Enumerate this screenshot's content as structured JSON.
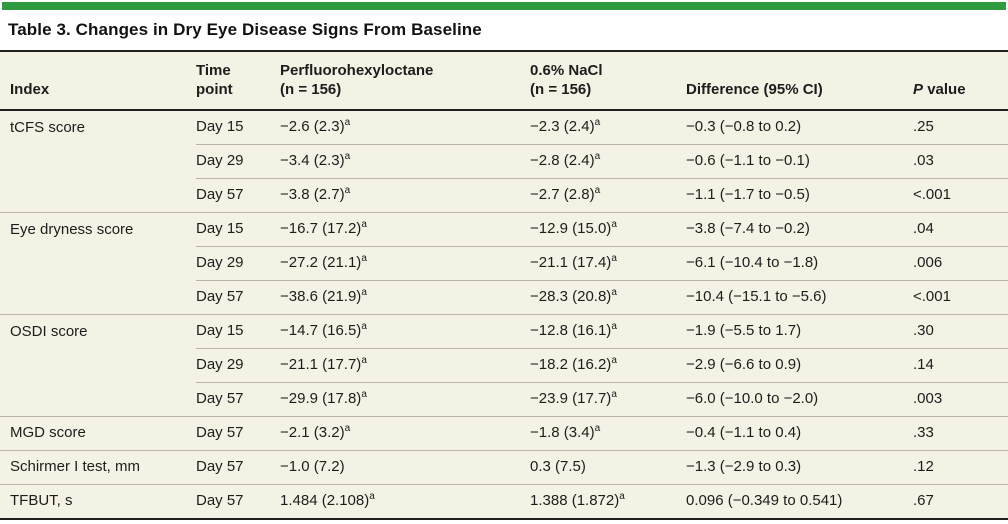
{
  "accent_color": "#2e9b3f",
  "title": "Table 3. Changes in Dry Eye Disease Signs From Baseline",
  "header": {
    "index": "Index",
    "time_line1": "Time",
    "time_line2": "point",
    "drug1_line1": "Perfluorohexyloctane",
    "drug1_line2": "(n = 156)",
    "drug2_line1": "0.6% NaCl",
    "drug2_line2": "(n = 156)",
    "difference": "Difference (95% CI)",
    "p_italic": "P",
    "p_rest": "value"
  },
  "rows": [
    {
      "index": "tCFS score",
      "time": "Day 15",
      "a": "−2.6 (2.3)",
      "a_sup": "a",
      "b": "−2.3 (2.4)",
      "b_sup": "a",
      "diff": "−0.3 (−0.8 to 0.2)",
      "p": ".25"
    },
    {
      "index": "",
      "time": "Day 29",
      "a": "−3.4 (2.3)",
      "a_sup": "a",
      "b": "−2.8 (2.4)",
      "b_sup": "a",
      "diff": "−0.6 (−1.1 to −0.1)",
      "p": ".03"
    },
    {
      "index": "",
      "time": "Day 57",
      "a": "−3.8 (2.7)",
      "a_sup": "a",
      "b": "−2.7 (2.8)",
      "b_sup": "a",
      "diff": "−1.1 (−1.7 to −0.5)",
      "p": "<.001"
    },
    {
      "index": "Eye dryness score",
      "time": "Day 15",
      "a": "−16.7 (17.2)",
      "a_sup": "a",
      "b": "−12.9 (15.0)",
      "b_sup": "a",
      "diff": "−3.8 (−7.4 to −0.2)",
      "p": ".04"
    },
    {
      "index": "",
      "time": "Day 29",
      "a": "−27.2 (21.1)",
      "a_sup": "a",
      "b": "−21.1 (17.4)",
      "b_sup": "a",
      "diff": "−6.1 (−10.4 to −1.8)",
      "p": ".006"
    },
    {
      "index": "",
      "time": "Day 57",
      "a": "−38.6 (21.9)",
      "a_sup": "a",
      "b": "−28.3 (20.8)",
      "b_sup": "a",
      "diff": "−10.4 (−15.1 to −5.6)",
      "p": "<.001"
    },
    {
      "index": "OSDI score",
      "time": "Day 15",
      "a": "−14.7 (16.5)",
      "a_sup": "a",
      "b": "−12.8 (16.1)",
      "b_sup": "a",
      "diff": "−1.9 (−5.5 to 1.7)",
      "p": ".30"
    },
    {
      "index": "",
      "time": "Day 29",
      "a": "−21.1 (17.7)",
      "a_sup": "a",
      "b": "−18.2 (16.2)",
      "b_sup": "a",
      "diff": "−2.9 (−6.6 to 0.9)",
      "p": ".14"
    },
    {
      "index": "",
      "time": "Day 57",
      "a": "−29.9 (17.8)",
      "a_sup": "a",
      "b": "−23.9 (17.7)",
      "b_sup": "a",
      "diff": "−6.0 (−10.0 to −2.0)",
      "p": ".003"
    },
    {
      "index": "MGD score",
      "time": "Day 57",
      "a": "−2.1 (3.2)",
      "a_sup": "a",
      "b": "−1.8 (3.4)",
      "b_sup": "a",
      "diff": "−0.4 (−1.1 to 0.4)",
      "p": ".33"
    },
    {
      "index": "Schirmer I test, mm",
      "time": "Day 57",
      "a": "−1.0 (7.2)",
      "a_sup": "",
      "b": "0.3 (7.5)",
      "b_sup": "",
      "diff": "−1.3 (−2.9 to 0.3)",
      "p": ".12"
    },
    {
      "index": "TFBUT, s",
      "time": "Day 57",
      "a": "1.484 (2.108)",
      "a_sup": "a",
      "b": "1.388 (1.872)",
      "b_sup": "a",
      "diff": "0.096 (−0.349 to 0.541)",
      "p": ".67"
    }
  ]
}
